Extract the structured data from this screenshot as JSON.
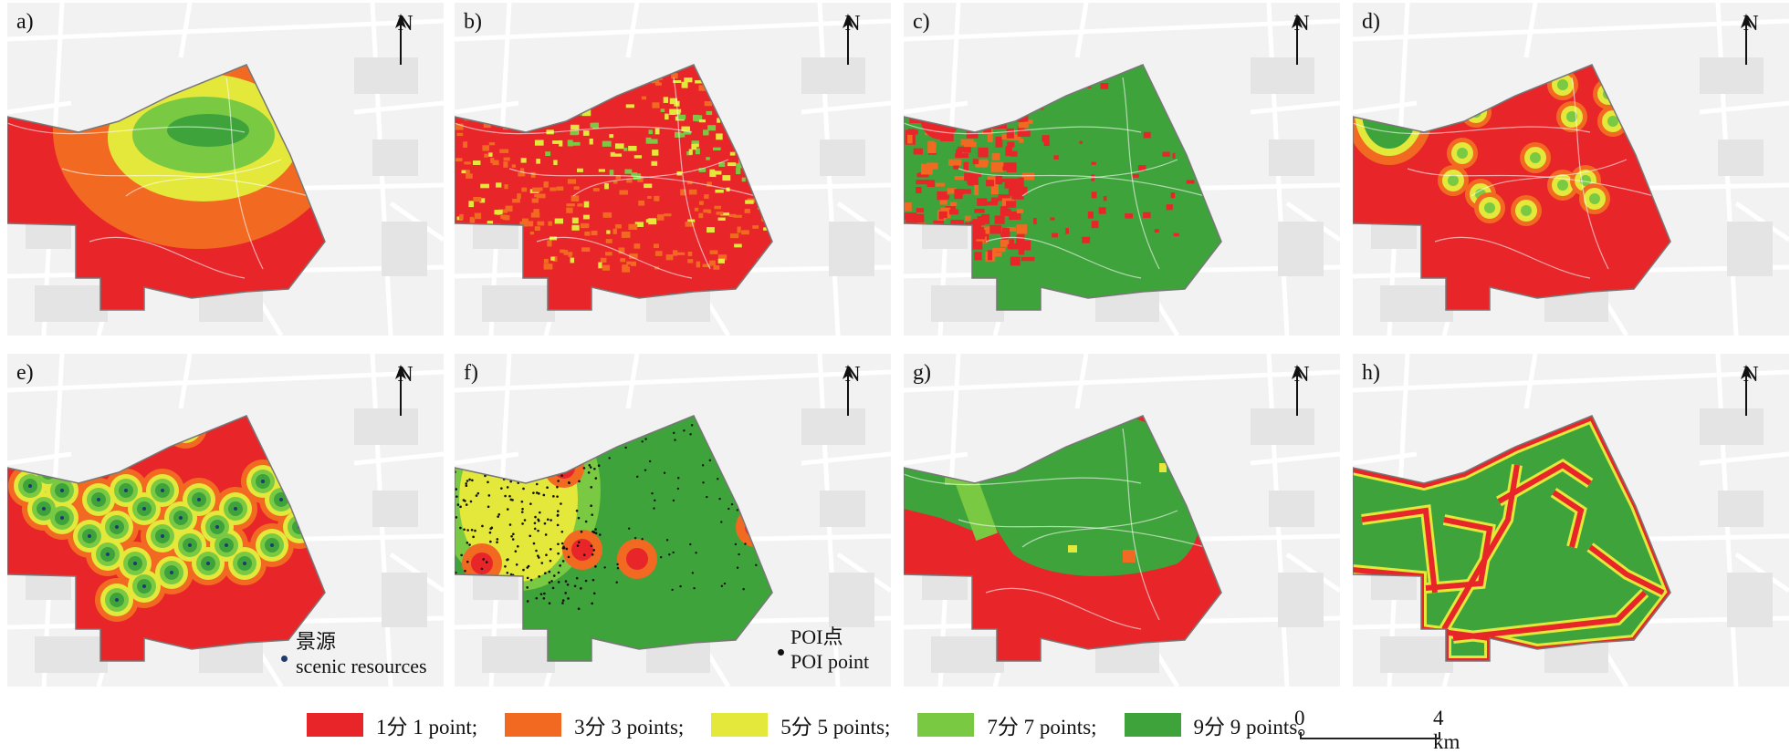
{
  "panels": [
    {
      "id": "a",
      "label": "a)"
    },
    {
      "id": "b",
      "label": "b)"
    },
    {
      "id": "c",
      "label": "c)"
    },
    {
      "id": "d",
      "label": "d)"
    },
    {
      "id": "e",
      "label": "e)"
    },
    {
      "id": "f",
      "label": "f)"
    },
    {
      "id": "g",
      "label": "g)"
    },
    {
      "id": "h",
      "label": "h)"
    }
  ],
  "north_label": "N",
  "inset_legends": {
    "e": {
      "line1": "景源",
      "line2": "scenic resources",
      "dot_color": "#1f3a6e"
    },
    "f": {
      "line1": "POI点",
      "line2": "POI point",
      "dot_color": "#111111"
    }
  },
  "legend": [
    {
      "label": "1分 1 point;",
      "color": "#e8262a"
    },
    {
      "label": "3分 3 points;",
      "color": "#f26a22"
    },
    {
      "label": "5分 5 points;",
      "color": "#e3e83a"
    },
    {
      "label": "7分 7 points;",
      "color": "#7ac943"
    },
    {
      "label": "9分 9 points。",
      "color": "#3fa33b"
    }
  ],
  "scale_bar": {
    "start": "0",
    "end": "4 km"
  },
  "colors": {
    "red": "#e8262a",
    "orange": "#f26a22",
    "yellow": "#e3e83a",
    "lightgreen": "#7ac943",
    "green": "#3fa33b",
    "basemap": "#f2f2f2"
  }
}
